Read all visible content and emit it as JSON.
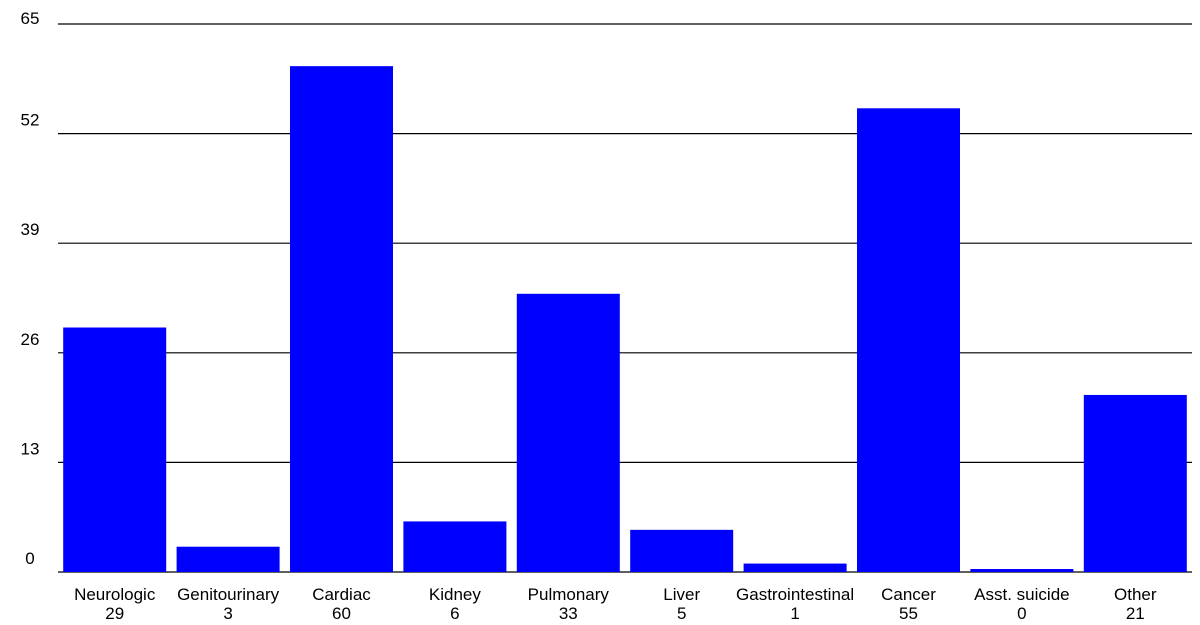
{
  "chart_data": {
    "type": "bar",
    "title": "",
    "xlabel": "",
    "ylabel": "",
    "categories": [
      "Neurologic",
      "Genitourinary",
      "Cardiac",
      "Kidney",
      "Pulmonary",
      "Liver",
      "Gastrointestinal",
      "Cancer",
      "Asst. suicide",
      "Other"
    ],
    "values": [
      29,
      3,
      60,
      6,
      33,
      5,
      1,
      55,
      0,
      21
    ],
    "value_labels": [
      "29",
      "3",
      "60",
      "6",
      "33",
      "5",
      "1",
      "55",
      "0",
      "21"
    ],
    "yticks": [
      0,
      13,
      26,
      39,
      52,
      65
    ],
    "ylim": [
      0,
      65
    ],
    "grid": "horizontal",
    "bar_color": "#0000ff",
    "grid_color": "#000000"
  }
}
